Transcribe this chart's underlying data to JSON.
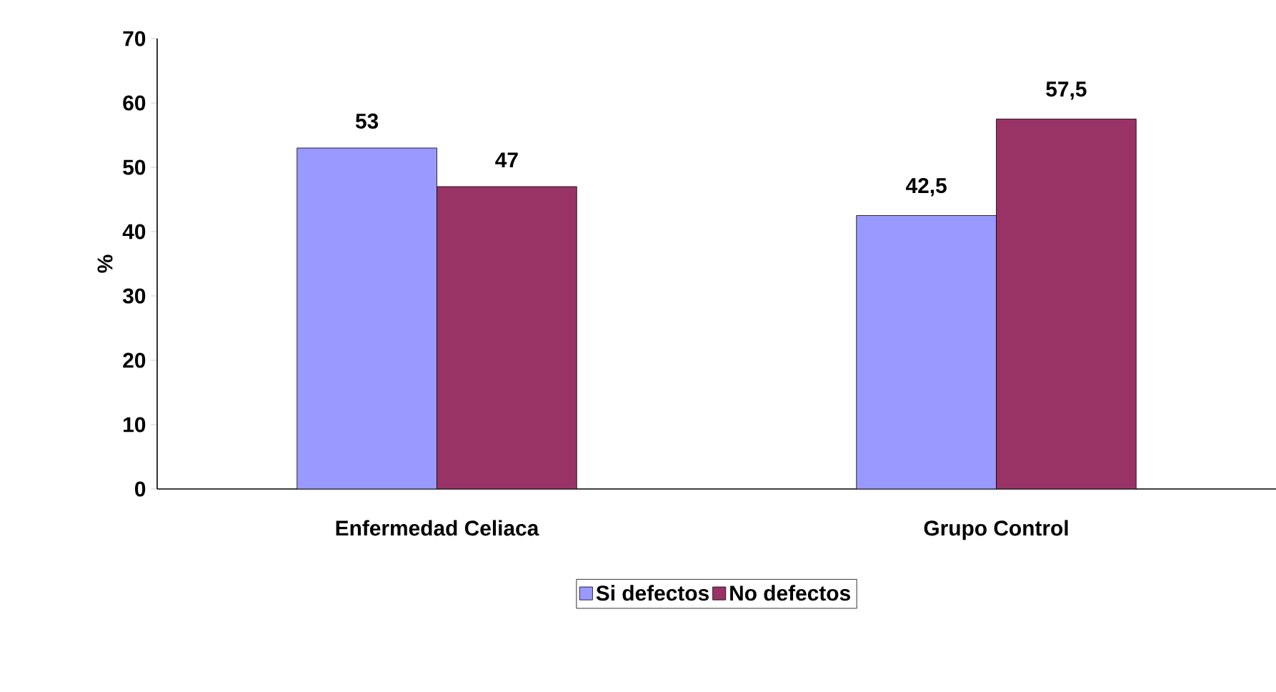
{
  "chart_data": {
    "type": "bar",
    "ylabel": "%",
    "categories": [
      "Enfermedad Celiaca",
      "Grupo Control"
    ],
    "series": [
      {
        "name": "Si defectos",
        "color": "#9999ff",
        "values": [
          53,
          42.5
        ],
        "value_labels": [
          "53",
          "42,5"
        ]
      },
      {
        "name": "No defectos",
        "color": "#993366",
        "values": [
          47,
          57.5
        ],
        "value_labels": [
          "47",
          "57,5"
        ]
      }
    ],
    "ylim": [
      0,
      70
    ],
    "yticks": [
      0,
      10,
      20,
      30,
      40,
      50,
      60,
      70
    ],
    "grid": false,
    "legend": "bottom"
  }
}
